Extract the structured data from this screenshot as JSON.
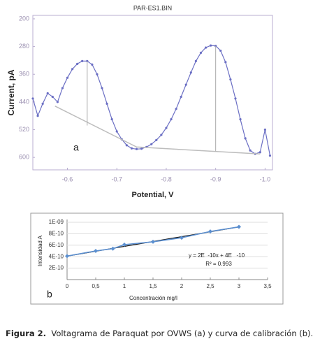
{
  "chart_data": [
    {
      "type": "line",
      "title": "PAR-ES1.BIN",
      "ylabel": "Current, pA",
      "xlabel": "Potential, V",
      "annotation": "a",
      "xlim": [
        -0.53,
        -1.015
      ],
      "xticks": [
        -0.6,
        -0.7,
        -0.8,
        -0.9,
        {
          "value": -1,
          "label": "-1.0"
        }
      ],
      "ylim": [
        636,
        190
      ],
      "yticks": [
        200,
        280,
        360,
        440,
        520,
        600
      ],
      "series": [
        {
          "name": "PAR-ES1.BIN",
          "color": "#6b6fc4",
          "x": [
            -0.53,
            -0.54,
            -0.55,
            -0.56,
            -0.57,
            -0.58,
            -0.59,
            -0.6,
            -0.61,
            -0.62,
            -0.63,
            -0.64,
            -0.65,
            -0.66,
            -0.67,
            -0.68,
            -0.69,
            -0.7,
            -0.71,
            -0.72,
            -0.73,
            -0.74,
            -0.75,
            -0.76,
            -0.77,
            -0.78,
            -0.79,
            -0.8,
            -0.81,
            -0.82,
            -0.83,
            -0.84,
            -0.85,
            -0.86,
            -0.87,
            -0.88,
            -0.89,
            -0.9,
            -0.91,
            -0.92,
            -0.93,
            -0.94,
            -0.95,
            -0.96,
            -0.97,
            -0.98,
            -0.99,
            -1.0,
            -1.01
          ],
          "values": [
            430,
            480,
            445,
            415,
            425,
            440,
            400,
            370,
            345,
            330,
            322,
            322,
            332,
            360,
            400,
            445,
            490,
            525,
            548,
            565,
            574,
            576,
            575,
            570,
            562,
            550,
            535,
            515,
            490,
            460,
            425,
            390,
            355,
            322,
            298,
            283,
            277,
            278,
            292,
            325,
            375,
            430,
            490,
            545,
            580,
            590,
            585,
            520,
            595
          ]
        },
        {
          "name": "baseline",
          "color": "#bdbdbd",
          "x": [
            -0.575,
            -0.74,
            -0.99
          ],
          "values": [
            452,
            570,
            590
          ]
        }
      ],
      "peak_lines": [
        {
          "x": -0.64,
          "values": [
            322,
            508
          ]
        },
        {
          "x": -0.9,
          "values": [
            278,
            582
          ]
        }
      ]
    },
    {
      "type": "scatter",
      "ylabel": "Intensidad A",
      "xlabel": "Concentración mg/l",
      "annotation": "b",
      "equation": "y = 2E  -10x + 4E   -10",
      "r_squared": "R² = 0.993",
      "xlim": [
        0,
        3.5
      ],
      "xticks": [
        0,
        {
          "value": 0.5,
          "label": "0,5"
        },
        1,
        {
          "value": 1.5,
          "label": "1,5"
        },
        2,
        {
          "value": 2.5,
          "label": "2,5"
        },
        3,
        {
          "value": 3.5,
          "label": "3,5"
        }
      ],
      "ylim": [
        0,
        1e-09
      ],
      "yticks": [
        {
          "value": 2e-10,
          "label": "2E-10"
        },
        {
          "value": 4e-10,
          "label": "4E-10"
        },
        {
          "value": 6e-10,
          "label": "6E-10"
        },
        {
          "value": 8e-10,
          "label": "8E-10"
        },
        {
          "value": 1e-09,
          "label": "1E-09"
        }
      ],
      "series": [
        {
          "name": "Intensidad",
          "color": "#5b8fd0",
          "x": [
            0,
            0.5,
            0.8,
            1,
            1.5,
            2,
            2.5,
            3
          ],
          "values": [
            4.1e-10,
            5e-10,
            5.4e-10,
            6.1e-10,
            6.6e-10,
            7.3e-10,
            8.4e-10,
            9.2e-10
          ]
        }
      ],
      "trendline": {
        "color": "#111111",
        "x": [
          0,
          3
        ],
        "values": [
          4.1e-10,
          9.2e-10
        ]
      }
    }
  ],
  "caption": {
    "label": "Figura 2.",
    "text": "Voltagrama de Paraquat por OVWS (a) y curva de calibración (b)."
  }
}
